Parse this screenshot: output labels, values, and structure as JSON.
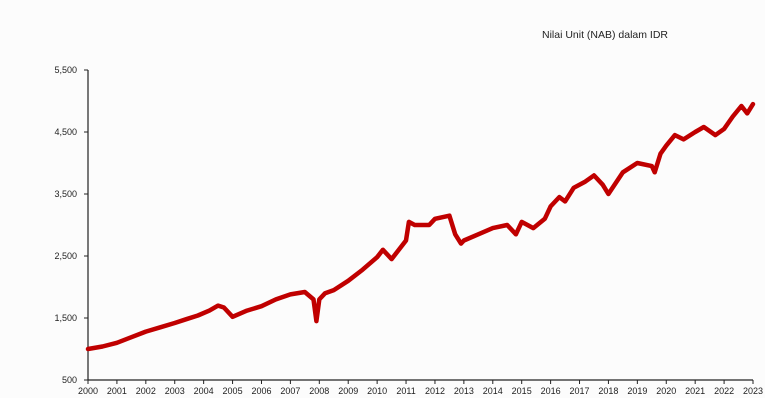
{
  "chart_data": {
    "type": "line",
    "title": "Nilai Unit (NAB) dalam IDR",
    "xlabel": "",
    "ylabel": "",
    "xlim": [
      2000,
      2023
    ],
    "ylim": [
      500,
      5500
    ],
    "yticks": [
      500,
      1500,
      2500,
      3500,
      4500,
      5500
    ],
    "ytick_labels": [
      "500",
      "1,500",
      "2,500",
      "3,500",
      "4,500",
      "5,500"
    ],
    "xtick_labels": [
      "2000",
      "2001",
      "2002",
      "2003",
      "2004",
      "2005",
      "2006",
      "2007",
      "2008",
      "2009",
      "2010",
      "2011",
      "2012",
      "2013",
      "2014",
      "2015",
      "2016",
      "2017",
      "2018",
      "2019",
      "2020",
      "2021",
      "2022",
      "2023"
    ],
    "grid": false,
    "color": "#c00000",
    "series": [
      {
        "x": [
          2000.0,
          2000.5,
          2001.0,
          2001.5,
          2002.0,
          2002.5,
          2003.0,
          2003.4,
          2003.8,
          2004.2,
          2004.5,
          2004.7,
          2005.0,
          2005.5,
          2006.0,
          2006.5,
          2007.0,
          2007.5,
          2007.8,
          2007.9,
          2008.0,
          2008.2,
          2008.5,
          2009.0,
          2009.5,
          2010.0,
          2010.2,
          2010.5,
          2011.0,
          2011.1,
          2011.3,
          2011.8,
          2012.0,
          2012.5,
          2012.7,
          2012.9,
          2013.0,
          2013.5,
          2014.0,
          2014.5,
          2014.8,
          2015.0,
          2015.4,
          2015.8,
          2016.0,
          2016.3,
          2016.5,
          2016.8,
          2017.2,
          2017.5,
          2017.8,
          2018.0,
          2018.5,
          2019.0,
          2019.5,
          2019.6,
          2019.8,
          2020.0,
          2020.3,
          2020.6,
          2021.0,
          2021.3,
          2021.7,
          2022.0,
          2022.3,
          2022.6,
          2022.8,
          2023.0
        ],
        "y": [
          1000,
          1040,
          1100,
          1190,
          1280,
          1350,
          1420,
          1480,
          1540,
          1620,
          1700,
          1670,
          1520,
          1620,
          1690,
          1800,
          1880,
          1920,
          1800,
          1450,
          1800,
          1900,
          1950,
          2100,
          2280,
          2480,
          2600,
          2450,
          2750,
          3050,
          3000,
          3000,
          3100,
          3150,
          2850,
          2700,
          2750,
          2850,
          2950,
          3000,
          2850,
          3050,
          2950,
          3100,
          3300,
          3450,
          3380,
          3600,
          3700,
          3800,
          3650,
          3500,
          3850,
          4000,
          3950,
          3850,
          4150,
          4280,
          4450,
          4380,
          4500,
          4580,
          4450,
          4550,
          4750,
          4920,
          4800,
          4950
        ]
      }
    ]
  }
}
